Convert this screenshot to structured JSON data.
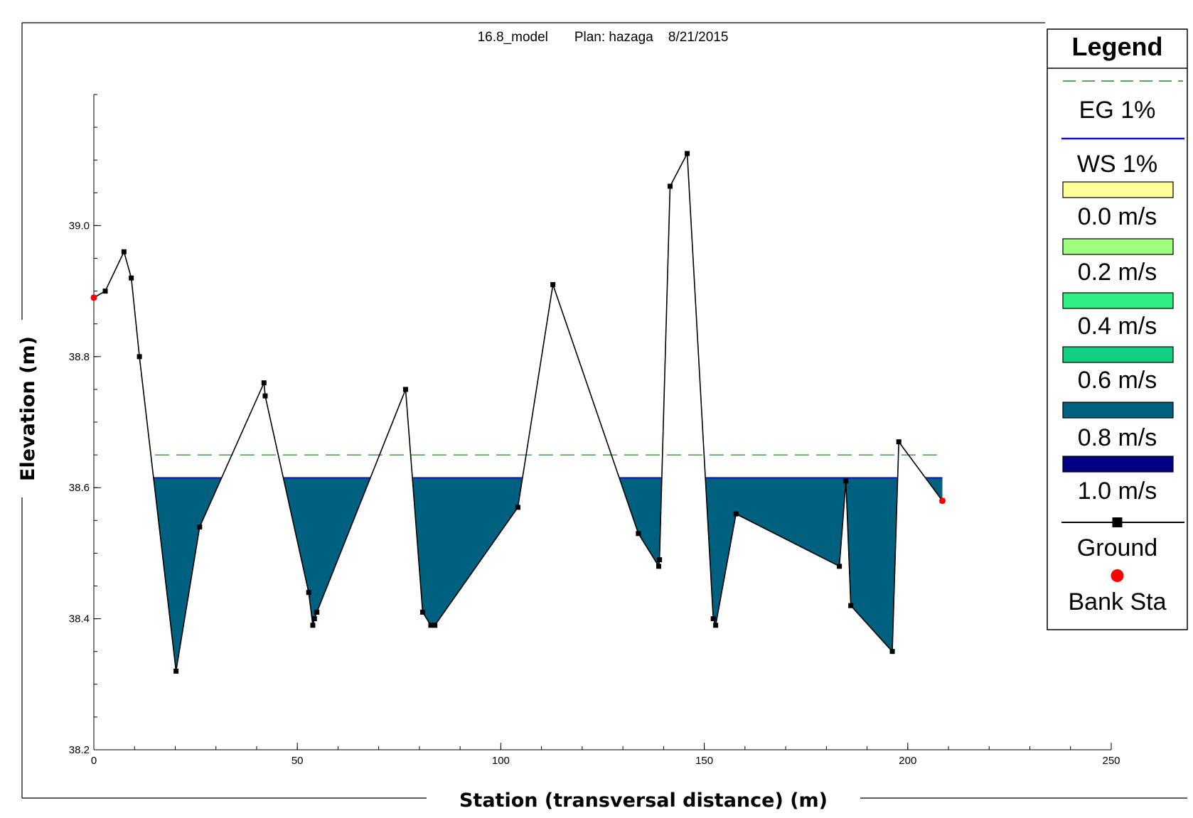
{
  "chart_data": {
    "type": "line",
    "title": "16.8_model       Plan: hazaga    8/21/2015",
    "xlabel": "Station (transversal distance) (m)",
    "ylabel": "Elevation (m)",
    "xlim": [
      0,
      250
    ],
    "ylim": [
      38.2,
      39.2
    ],
    "x_ticks": [
      0,
      50,
      100,
      150,
      200,
      250
    ],
    "x_tick_labels": [
      "0",
      "50",
      "100",
      "150",
      "200",
      "250"
    ],
    "y_ticks": [
      38.2,
      38.4,
      38.6,
      38.8,
      39.0
    ],
    "y_tick_labels": [
      "38.2",
      "38.4",
      "38.6",
      "38.8",
      "39.0"
    ],
    "grid": false,
    "legend_position": "right",
    "series": [
      {
        "name": "EG 1%",
        "style": "dashed",
        "color": "#1f8a1f",
        "x": [
          15.0,
          208.5
        ],
        "y": [
          38.65,
          38.65
        ]
      },
      {
        "name": "WS 1%",
        "style": "solid",
        "color": "#1010cc",
        "x": [
          15.0,
          208.5
        ],
        "y": [
          38.615,
          38.615
        ]
      },
      {
        "name": "Ground",
        "style": "line-marker",
        "color": "#000000",
        "x": [
          0,
          2.8,
          7.4,
          9.2,
          11.2,
          20.2,
          26.0,
          41.8,
          42.1,
          52.8,
          53.8,
          54.2,
          54.8,
          76.6,
          80.8,
          82.8,
          83.8,
          104.2,
          112.8,
          133.8,
          138.8,
          139.0,
          141.6,
          145.8,
          152.2,
          152.8,
          157.8,
          183.2,
          184.8,
          186.0,
          196.2,
          197.8,
          208.5
        ],
        "y": [
          38.89,
          38.9,
          38.96,
          38.92,
          38.8,
          38.32,
          38.54,
          38.76,
          38.74,
          38.44,
          38.39,
          38.4,
          38.41,
          38.75,
          38.41,
          38.39,
          38.39,
          38.57,
          38.91,
          38.53,
          38.48,
          38.49,
          39.06,
          39.11,
          38.4,
          38.39,
          38.56,
          38.48,
          38.61,
          38.42,
          38.35,
          38.67,
          38.58
        ]
      },
      {
        "name": "Bank Sta",
        "style": "marker",
        "color": "#ff0000",
        "x": [
          0,
          208.5
        ],
        "y": [
          38.89,
          38.58
        ]
      }
    ],
    "velocity_fill": {
      "color": "#00607f",
      "label": "0.8 m/s"
    }
  },
  "legend": {
    "title": "Legend",
    "items": [
      {
        "label": "EG 1%",
        "kind": "dashed-line",
        "color": "#1f8a1f"
      },
      {
        "label": "WS 1%",
        "kind": "line",
        "color": "#1010cc"
      },
      {
        "label": "0.0 m/s",
        "kind": "swatch",
        "color": "#ffff99"
      },
      {
        "label": "0.2 m/s",
        "kind": "swatch",
        "color": "#9fff7f"
      },
      {
        "label": "0.4 m/s",
        "kind": "swatch",
        "color": "#2ff07f"
      },
      {
        "label": "0.6 m/s",
        "kind": "swatch",
        "color": "#10d07f"
      },
      {
        "label": "0.8 m/s",
        "kind": "swatch",
        "color": "#00607f"
      },
      {
        "label": "1.0 m/s",
        "kind": "swatch",
        "color": "#000080"
      },
      {
        "label": "Ground",
        "kind": "line-marker",
        "color": "#000000"
      },
      {
        "label": "Bank Sta",
        "kind": "dot",
        "color": "#ff0000"
      }
    ]
  }
}
